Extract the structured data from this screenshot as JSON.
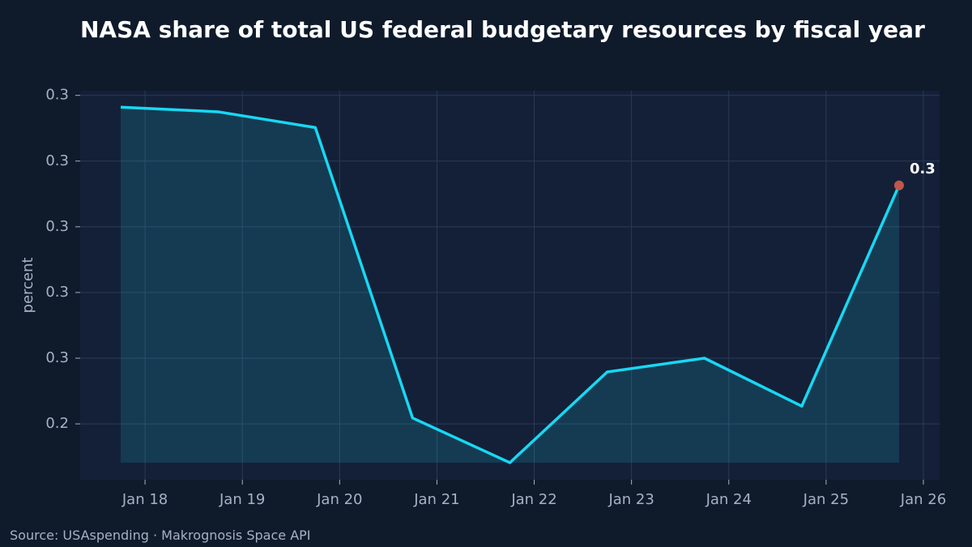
{
  "chart_data": {
    "type": "line",
    "title": "NASA share of total US federal budgetary resources by fiscal year",
    "y_label": "percent",
    "source": "Source: USAspending · Makrognosis Space API",
    "x": [
      "2017-10",
      "2018-10",
      "2019-10",
      "2020-10",
      "2021-10",
      "2022-10",
      "2023-10",
      "2024-10",
      "2025-10"
    ],
    "series": [
      {
        "name": "NASA share",
        "color": "#18d8f2",
        "values": [
          0.2982,
          0.2975,
          0.2951,
          0.2509,
          0.2441,
          0.2579,
          0.26,
          0.2527,
          0.2863
        ],
        "value_labels": [
          null,
          null,
          null,
          null,
          null,
          null,
          null,
          null,
          "0.3"
        ]
      }
    ],
    "highlight_color": "#c0574a",
    "xlim": [
      "2017-05",
      "2026-03"
    ],
    "xticks": [
      {
        "value": "2018-01",
        "label": "Jan 18"
      },
      {
        "value": "2019-01",
        "label": "Jan 19"
      },
      {
        "value": "2020-01",
        "label": "Jan 20"
      },
      {
        "value": "2021-01",
        "label": "Jan 21"
      },
      {
        "value": "2022-01",
        "label": "Jan 22"
      },
      {
        "value": "2023-01",
        "label": "Jan 23"
      },
      {
        "value": "2024-01",
        "label": "Jan 24"
      },
      {
        "value": "2025-01",
        "label": "Jan 25"
      },
      {
        "value": "2026-01",
        "label": "Jan 26"
      }
    ],
    "ylim": [
      0.2415,
      0.3007
    ],
    "yticks": [
      {
        "value": 0.25,
        "label": "0.2"
      },
      {
        "value": 0.26,
        "label": "0.3"
      },
      {
        "value": 0.27,
        "label": "0.3"
      },
      {
        "value": 0.28,
        "label": "0.3"
      },
      {
        "value": 0.29,
        "label": "0.3"
      },
      {
        "value": 0.3,
        "label": "0.3"
      }
    ],
    "grid": true
  }
}
